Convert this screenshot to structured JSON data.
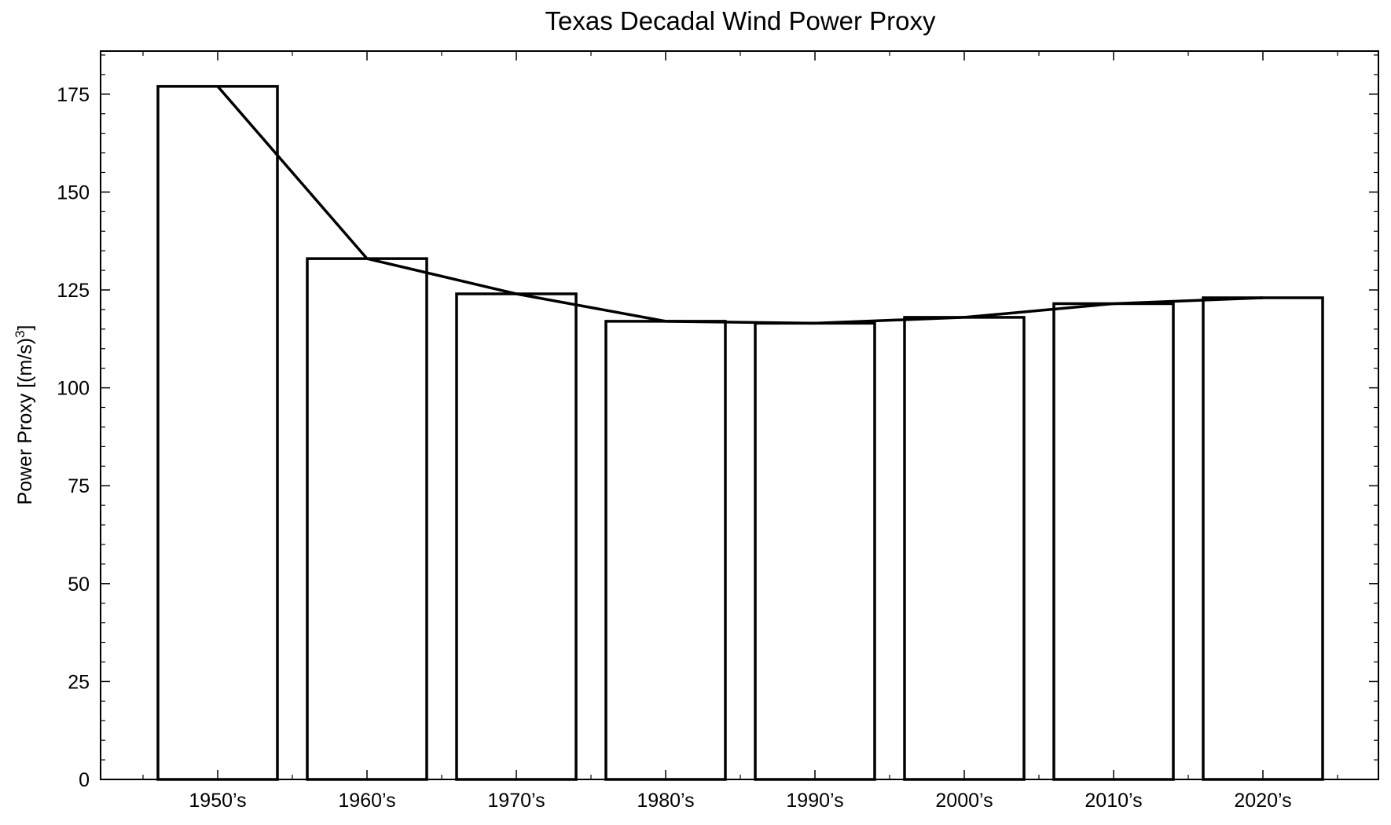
{
  "colors": {
    "bar_fill": "#ffffff",
    "bar_stroke": "#000000",
    "line": "#000000",
    "axes": "#000000",
    "background": "#ffffff"
  },
  "chart_data": {
    "type": "bar",
    "title": "Texas Decadal Wind Power Proxy",
    "xlabel": "",
    "ylabel": "Power Proxy [(m/s)",
    "ylabel_superscript": "3",
    "ylabel_suffix": "]",
    "categories": [
      "1950’s",
      "1960’s",
      "1970’s",
      "1980’s",
      "1990’s",
      "2000’s",
      "2010’s",
      "2020’s"
    ],
    "values": [
      177,
      133,
      124,
      117,
      116.5,
      118,
      121.5,
      123
    ],
    "overlay_line": {
      "type": "line",
      "values": [
        177,
        133,
        124,
        117,
        116.5,
        118,
        121.5,
        123
      ]
    },
    "ylim": [
      0,
      186
    ],
    "yticks": [
      0,
      25,
      50,
      75,
      100,
      125,
      150,
      175
    ],
    "y_minor_step": 5,
    "grid": false,
    "legend": "none"
  }
}
